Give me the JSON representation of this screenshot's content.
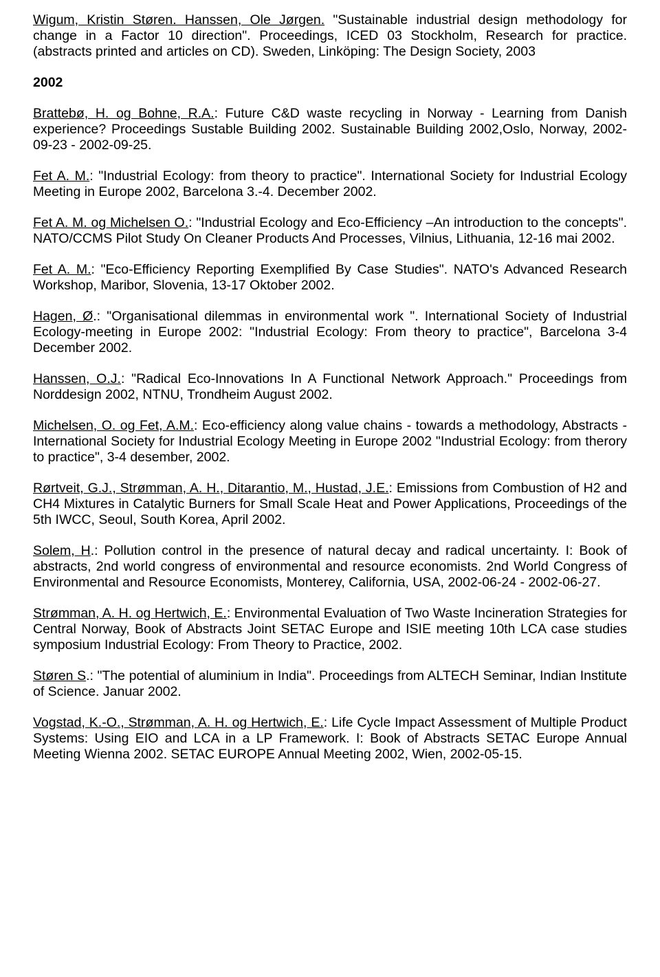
{
  "paragraphs": [
    {
      "type": "p",
      "runs": [
        {
          "t": "Wigum, Kristin Støren. Hanssen, Ole Jørgen.",
          "u": true
        },
        {
          "t": " \"Sustainable industrial design methodology for change in a Factor 10 direction\". Proceedings, ICED 03 Stockholm, Research for practice. (abstracts printed and articles on CD). Sweden, Linköping: The Design Society, 2003"
        }
      ]
    },
    {
      "type": "year",
      "text": "2002"
    },
    {
      "type": "p",
      "runs": [
        {
          "t": "Brattebø, H. og Bohne, R.A.",
          "u": true
        },
        {
          "t": ": Future C&D waste recycling in Norway - Learning from Danish experience? Proceedings Sustable Building 2002. Sustainable Building 2002,Oslo, Norway, 2002-09-23 - 2002-09-25."
        }
      ]
    },
    {
      "type": "p",
      "runs": [
        {
          "t": "Fet A. M.",
          "u": true
        },
        {
          "t": ": \"Industrial Ecology: from theory to practice\". International Society for Industrial Ecology Meeting in Europe 2002, Barcelona 3.-4. December 2002."
        }
      ]
    },
    {
      "type": "p",
      "runs": [
        {
          "t": "Fet A. M. og Michelsen O.",
          "u": true
        },
        {
          "t": ": \"Industrial Ecology and Eco-Efficiency –An introduction to the concepts\". NATO/CCMS Pilot Study On Cleaner Products And Processes, Vilnius, Lithuania, 12-16 mai 2002."
        }
      ]
    },
    {
      "type": "p",
      "runs": [
        {
          "t": "Fet A. M.",
          "u": true
        },
        {
          "t": ": \"Eco-Efficiency Reporting Exemplified By Case Studies\". NATO's Advanced Research Workshop, Maribor, Slovenia, 13-17 Oktober 2002."
        }
      ]
    },
    {
      "type": "p",
      "runs": [
        {
          "t": "Hagen, Ø",
          "u": true
        },
        {
          "t": ".: \"Organisational dilemmas in environmental work \". International Society of Industrial Ecology-meeting in Europe 2002: \"Industrial Ecology: From theory to practice\", Barcelona 3-4 December 2002."
        }
      ]
    },
    {
      "type": "p",
      "runs": [
        {
          "t": "Hanssen, O.J.",
          "u": true
        },
        {
          "t": ": \"Radical Eco-Innovations In A Functional Network Approach.\" Proceedings from Norddesign 2002, NTNU, Trondheim August 2002."
        }
      ]
    },
    {
      "type": "p",
      "runs": [
        {
          "t": "Michelsen, O. og Fet, A.M.",
          "u": true
        },
        {
          "t": ": Eco-efficiency along value chains - towards a methodology, Abstracts - International Society for Industrial Ecology Meeting in Europe 2002 \"Industrial Ecology: from therory to practice\", 3-4 desember, 2002."
        }
      ]
    },
    {
      "type": "p",
      "runs": [
        {
          "t": "Rørtveit, G.J., Strømman, A. H., Ditarantio, M., Hustad, J.E.",
          "u": true
        },
        {
          "t": ": Emissions from Combustion of H2 and CH4 Mixtures in Catalytic Burners for Small Scale Heat and Power Applications, Proceedings of the 5th IWCC, Seoul, South Korea, April 2002."
        }
      ]
    },
    {
      "type": "p",
      "runs": [
        {
          "t": "Solem, H",
          "u": true
        },
        {
          "t": ".: Pollution control in the presence of natural decay and radical uncertainty. I: Book of abstracts, 2nd world congress of environmental and resource economists. 2nd World Congress of Environmental and Resource Economists, Monterey, California, USA, 2002-06-24 - 2002-06-27."
        }
      ]
    },
    {
      "type": "p",
      "runs": [
        {
          "t": "Strømman, A. H. og Hertwich, E.",
          "u": true
        },
        {
          "t": ": Environmental Evaluation of Two Waste Incineration Strategies for Central Norway, Book of Abstracts Joint SETAC Europe and ISIE meeting 10th LCA case studies symposium Industrial Ecology: From Theory to Practice, 2002."
        }
      ]
    },
    {
      "type": "p",
      "runs": [
        {
          "t": "Støren S",
          "u": true
        },
        {
          "t": ".: \"The potential of aluminium in India\". Proceedings from ALTECH Seminar, Indian Institute of Science. Januar 2002."
        }
      ]
    },
    {
      "type": "p",
      "runs": [
        {
          "t": "Vogstad, K.-O., Strømman, A. H. og Hertwich, E.",
          "u": true
        },
        {
          "t": ": Life Cycle Impact Assessment of Multiple Product Systems: Using EIO and LCA in a LP Framework. I: Book of Abstracts SETAC Europe Annual Meeting Wienna 2002. SETAC EUROPE Annual Meeting 2002, Wien, 2002-05-15."
        }
      ]
    }
  ]
}
